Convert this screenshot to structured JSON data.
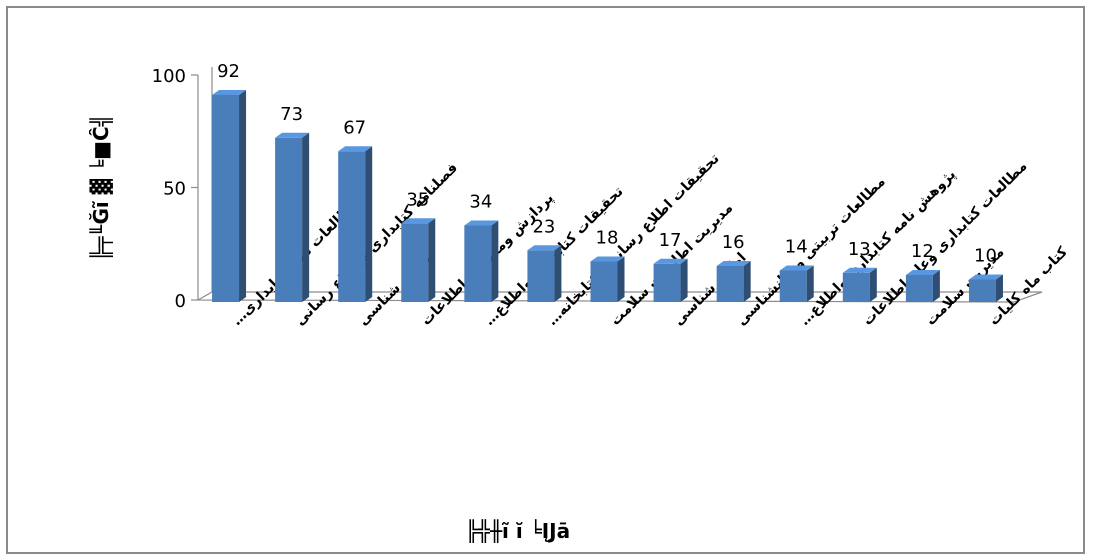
{
  "chart_data": {
    "type": "bar",
    "categories": [
      "مطالعات ملی کتابداری…",
      "فصلنامه کتابداری واطلاع رسانی",
      "دانش شناسی",
      "پردازش ومدیریت اطلاعات",
      "تحقیقات کتابداری واطلاع…",
      "تحقیقات اطلاع رسانی وکتابخانه…",
      "مدیریت اطلاعات سلامت",
      "اطلاع شناسی",
      "مطالعات تربیتی وروانشناسی",
      "پژوهش نامه کتابداری واطلاع…",
      "مطالعات کتابداری وعلم اطلاعات",
      "مدیریت سلامت",
      "کتاب ماه کلیات"
    ],
    "values": [
      92,
      73,
      67,
      35,
      34,
      23,
      18,
      17,
      16,
      14,
      13,
      12,
      10
    ],
    "yticks": [
      "0",
      "50",
      "100"
    ],
    "ylim": [
      0,
      100
    ],
    "ylabel": "╠╤╙Ğĩ ▓ ╘■Ĉ╣",
    "xlabel": "╠╬╫ĩ ĭ ╘ĮJā",
    "bar_color": "#4a7ebb",
    "grid": false,
    "legend": "none"
  }
}
